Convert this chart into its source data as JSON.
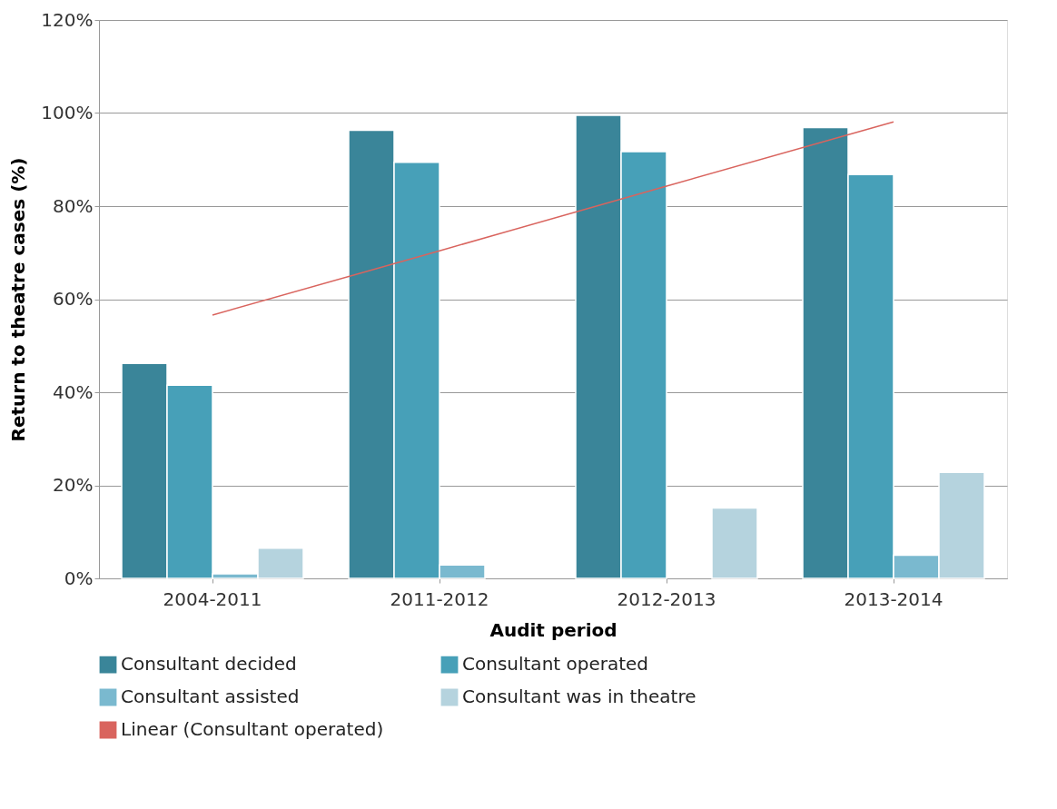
{
  "chart_data": {
    "type": "bar",
    "xlabel": "Audit period",
    "ylabel": "Return to theatre cases (%)",
    "categories": [
      "2004-2011",
      "2011-2012",
      "2012-2013",
      "2013-2014"
    ],
    "series": [
      {
        "name": "Consultant decided",
        "color": "#3a8599",
        "values": [
          46.2,
          96.3,
          99.5,
          96.9
        ]
      },
      {
        "name": "Consultant operated",
        "color": "#47a0b8",
        "values": [
          41.5,
          89.4,
          91.7,
          86.8
        ]
      },
      {
        "name": "Consultant assisted",
        "color": "#7ab9cf",
        "values": [
          1.0,
          2.9,
          null,
          5.0
        ]
      },
      {
        "name": "Consultant was in theatre",
        "color": "#b5d3de",
        "values": [
          6.5,
          null,
          15.1,
          22.8
        ]
      },
      {
        "name": "Linear (Consultant operated)",
        "type": "line",
        "color": "#d9645e",
        "x": [
          "2004-2011",
          "2011-2012",
          "2012-2013",
          "2013-2014"
        ],
        "values": [
          56.6,
          70.4,
          84.3,
          98.1
        ]
      }
    ],
    "ylim": [
      0,
      120
    ],
    "yticks": [
      {
        "value": 0,
        "label": "0%"
      },
      {
        "value": 20,
        "label": "20%"
      },
      {
        "value": 40,
        "label": "40%"
      },
      {
        "value": 60,
        "label": "60%"
      },
      {
        "value": 80,
        "label": "80%"
      },
      {
        "value": 100,
        "label": "100%"
      },
      {
        "value": 120,
        "label": "120%"
      }
    ],
    "grid": "y",
    "legend": "bottom"
  }
}
